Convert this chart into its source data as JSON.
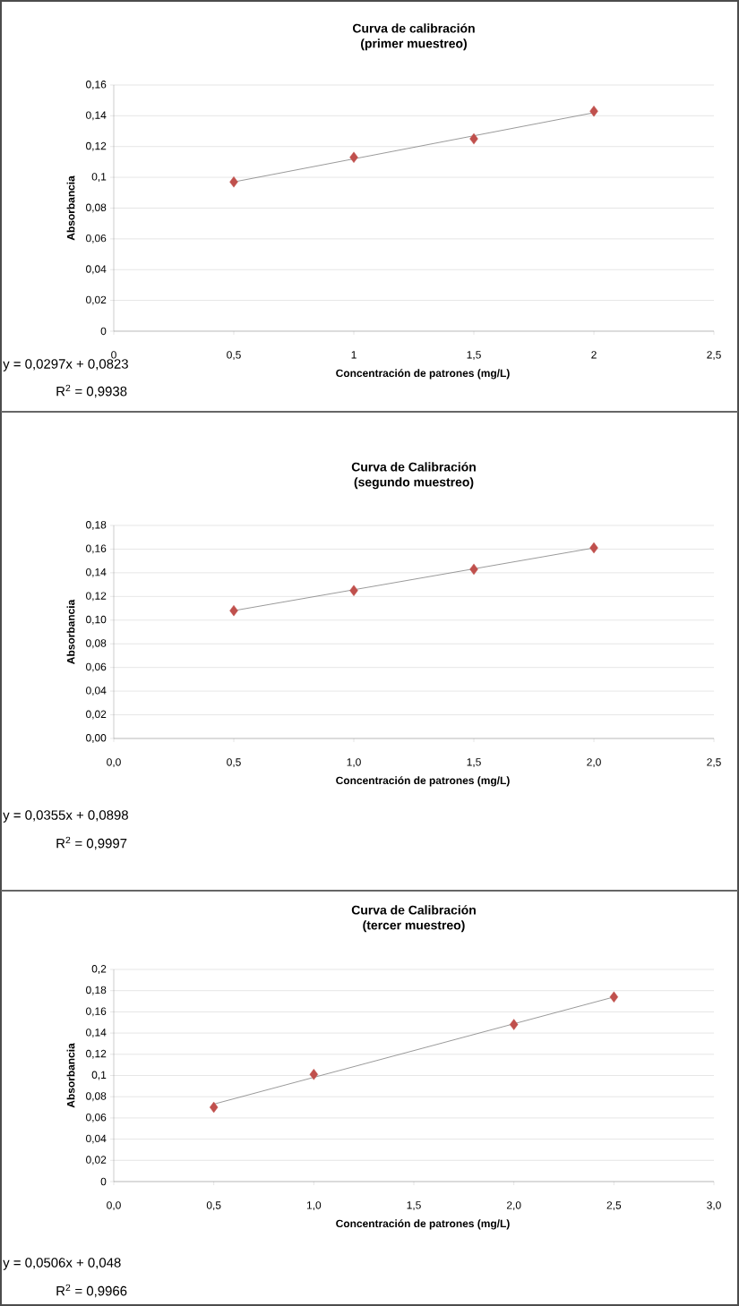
{
  "chart_data": [
    {
      "type": "scatter",
      "title": "Curva de calibración",
      "subtitle": "(primer muestreo)",
      "xlabel": "Concentración de patrones (mg/L)",
      "ylabel": "Absorbancia",
      "grid": "y",
      "xlim": [
        0,
        2.5
      ],
      "ylim": [
        0,
        0.16
      ],
      "xticks": [
        0,
        {
          "value": 0.5,
          "label": "0,5"
        },
        1,
        {
          "value": 1.5,
          "label": "1,5"
        },
        2,
        {
          "value": 2.5,
          "label": "2,5"
        }
      ],
      "yticks": [
        0,
        {
          "value": 0.02,
          "label": "0,02"
        },
        {
          "value": 0.04,
          "label": "0,04"
        },
        {
          "value": 0.06,
          "label": "0,06"
        },
        {
          "value": 0.08,
          "label": "0,08"
        },
        {
          "value": 0.1,
          "label": "0,1"
        },
        {
          "value": 0.12,
          "label": "0,12"
        },
        {
          "value": 0.14,
          "label": "0,14"
        },
        {
          "value": 0.16,
          "label": "0,16"
        }
      ],
      "x": [
        0.5,
        1,
        1.5,
        2
      ],
      "series": [
        {
          "marker": "diamond",
          "color": "#c0504d",
          "values": [
            0.097,
            0.113,
            0.125,
            0.143
          ]
        },
        {
          "type": "line",
          "marker": "none",
          "color": "#808080",
          "x": [
            0.5,
            2
          ],
          "values": [
            0.097,
            0.142
          ]
        }
      ],
      "annotations": [
        "y = 0,0297x + 0,0823",
        "R$^{2}$ = 0,9938"
      ]
    },
    {
      "type": "scatter",
      "title": "Curva de Calibración",
      "subtitle": "(segundo muestreo)",
      "xlabel": "Concentración de patrones (mg/L)",
      "ylabel": "Absorbancia",
      "grid": "y",
      "xlim": [
        0,
        2.5
      ],
      "ylim": [
        0,
        0.18
      ],
      "xticks": [
        {
          "value": 0,
          "label": "0,0"
        },
        {
          "value": 0.5,
          "label": "0,5"
        },
        {
          "value": 1,
          "label": "1,0"
        },
        {
          "value": 1.5,
          "label": "1,5"
        },
        {
          "value": 2,
          "label": "2,0"
        },
        {
          "value": 2.5,
          "label": "2,5"
        }
      ],
      "yticks": [
        {
          "value": 0,
          "label": "0,00"
        },
        {
          "value": 0.02,
          "label": "0,02"
        },
        {
          "value": 0.04,
          "label": "0,04"
        },
        {
          "value": 0.06,
          "label": "0,06"
        },
        {
          "value": 0.08,
          "label": "0,08"
        },
        {
          "value": 0.1,
          "label": "0,10"
        },
        {
          "value": 0.12,
          "label": "0,12"
        },
        {
          "value": 0.14,
          "label": "0,14"
        },
        {
          "value": 0.16,
          "label": "0,16"
        },
        {
          "value": 0.18,
          "label": "0,18"
        }
      ],
      "x": [
        0.5,
        1,
        1.5,
        2
      ],
      "series": [
        {
          "marker": "diamond",
          "color": "#c0504d",
          "values": [
            0.108,
            0.125,
            0.143,
            0.161
          ]
        },
        {
          "type": "line",
          "marker": "none",
          "color": "#808080",
          "x": [
            0.5,
            2
          ],
          "values": [
            0.108,
            0.161
          ]
        }
      ],
      "annotations": [
        "y = 0,0355x + 0,0898",
        "R$^{2}$ = 0,9997"
      ]
    },
    {
      "type": "scatter",
      "title": "Curva de Calibración",
      "subtitle": "(tercer muestreo)",
      "xlabel": "Concentración de patrones (mg/L)",
      "ylabel": "Absorbancia",
      "grid": "y",
      "xlim": [
        0,
        3
      ],
      "ylim": [
        0,
        0.2
      ],
      "xticks": [
        {
          "value": 0,
          "label": "0,0"
        },
        {
          "value": 0.5,
          "label": "0,5"
        },
        {
          "value": 1,
          "label": "1,0"
        },
        {
          "value": 1.5,
          "label": "1,5"
        },
        {
          "value": 2,
          "label": "2,0"
        },
        {
          "value": 2.5,
          "label": "2,5"
        },
        {
          "value": 3,
          "label": "3,0"
        }
      ],
      "yticks": [
        0,
        {
          "value": 0.02,
          "label": "0,02"
        },
        {
          "value": 0.04,
          "label": "0,04"
        },
        {
          "value": 0.06,
          "label": "0,06"
        },
        {
          "value": 0.08,
          "label": "0,08"
        },
        {
          "value": 0.1,
          "label": "0,1"
        },
        {
          "value": 0.12,
          "label": "0,12"
        },
        {
          "value": 0.14,
          "label": "0,14"
        },
        {
          "value": 0.16,
          "label": "0,16"
        },
        {
          "value": 0.18,
          "label": "0,18"
        },
        {
          "value": 0.2,
          "label": "0,2"
        }
      ],
      "x": [
        0.5,
        1,
        2,
        2.5
      ],
      "series": [
        {
          "marker": "diamond",
          "color": "#c0504d",
          "values": [
            0.07,
            0.101,
            0.148,
            0.174
          ]
        },
        {
          "type": "line",
          "marker": "none",
          "color": "#808080",
          "x": [
            0.5,
            2.5
          ],
          "values": [
            0.073,
            0.174
          ]
        }
      ],
      "annotations": [
        "y = 0,0506x + 0,048",
        "R$^{2}$ = 0,9966"
      ]
    }
  ]
}
